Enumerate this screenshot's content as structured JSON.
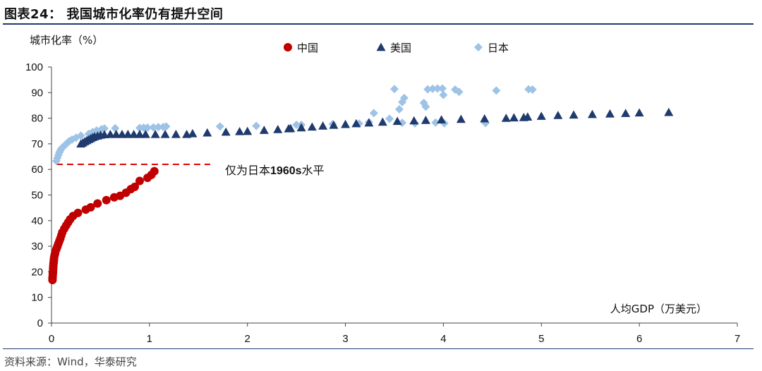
{
  "header": {
    "title": "图表24：  我国城市化率仍有提升空间"
  },
  "footer": {
    "source": "资料来源：Wind，华泰研究"
  },
  "chart_data": {
    "type": "scatter",
    "ylabel": "城市化率（%）",
    "xlabel": "人均GDP（万美元）",
    "xlim": [
      0,
      7
    ],
    "ylim": [
      0,
      100
    ],
    "xticks": [
      "0",
      "1",
      "2",
      "3",
      "4",
      "5",
      "6",
      "7"
    ],
    "yticks": [
      "0",
      "10",
      "20",
      "30",
      "40",
      "50",
      "60",
      "70",
      "80",
      "90",
      "100"
    ],
    "grid": false,
    "legend_position": "top",
    "annotation": {
      "text_prefix": "仅为日本",
      "text_bold": "1960s",
      "text_suffix": "水平",
      "ref_y": 62,
      "ref_x": [
        0.05,
        1.62
      ]
    },
    "series": [
      {
        "name": "中国",
        "marker": "circle",
        "color": "#c00000",
        "points": [
          [
            0.01,
            16.8
          ],
          [
            0.01,
            17.5
          ],
          [
            0.012,
            18.2
          ],
          [
            0.013,
            19.0
          ],
          [
            0.015,
            19.8
          ],
          [
            0.016,
            20.6
          ],
          [
            0.017,
            21.4
          ],
          [
            0.018,
            22.1
          ],
          [
            0.02,
            23.0
          ],
          [
            0.022,
            23.7
          ],
          [
            0.024,
            24.5
          ],
          [
            0.026,
            25.3
          ],
          [
            0.03,
            26.2
          ],
          [
            0.035,
            27.0
          ],
          [
            0.04,
            27.9
          ],
          [
            0.05,
            28.9
          ],
          [
            0.06,
            29.9
          ],
          [
            0.07,
            31.0
          ],
          [
            0.08,
            32.0
          ],
          [
            0.09,
            33.0
          ],
          [
            0.1,
            34.2
          ],
          [
            0.11,
            35.4
          ],
          [
            0.13,
            36.8
          ],
          [
            0.15,
            38.1
          ],
          [
            0.17,
            39.3
          ],
          [
            0.19,
            40.5
          ],
          [
            0.22,
            41.8
          ],
          [
            0.27,
            43.0
          ],
          [
            0.35,
            44.3
          ],
          [
            0.4,
            45.2
          ],
          [
            0.47,
            46.7
          ],
          [
            0.56,
            48.0
          ],
          [
            0.64,
            49.1
          ],
          [
            0.7,
            49.7
          ],
          [
            0.76,
            50.9
          ],
          [
            0.81,
            52.3
          ],
          [
            0.85,
            53.2
          ],
          [
            0.9,
            55.5
          ],
          [
            0.98,
            56.7
          ],
          [
            1.02,
            57.9
          ],
          [
            1.05,
            59.3
          ]
        ]
      },
      {
        "name": "美国",
        "marker": "triangle",
        "color": "#1f3b6e",
        "points": [
          [
            0.3,
            70.0
          ],
          [
            0.32,
            70.4
          ],
          [
            0.34,
            70.9
          ],
          [
            0.36,
            71.3
          ],
          [
            0.38,
            71.7
          ],
          [
            0.4,
            72.1
          ],
          [
            0.42,
            72.5
          ],
          [
            0.44,
            72.8
          ],
          [
            0.47,
            73.1
          ],
          [
            0.5,
            73.4
          ],
          [
            0.54,
            73.6
          ],
          [
            0.6,
            73.7
          ],
          [
            0.66,
            73.7
          ],
          [
            0.72,
            73.7
          ],
          [
            0.78,
            73.7
          ],
          [
            0.84,
            73.7
          ],
          [
            0.9,
            73.7
          ],
          [
            0.96,
            73.7
          ],
          [
            1.06,
            73.7
          ],
          [
            1.16,
            73.7
          ],
          [
            1.27,
            73.7
          ],
          [
            1.38,
            73.7
          ],
          [
            1.44,
            74.0
          ],
          [
            1.59,
            74.3
          ],
          [
            1.78,
            74.6
          ],
          [
            1.92,
            74.8
          ],
          [
            2.0,
            74.9
          ],
          [
            2.17,
            75.3
          ],
          [
            2.31,
            75.6
          ],
          [
            2.42,
            75.9
          ],
          [
            2.44,
            76.0
          ],
          [
            2.55,
            76.3
          ],
          [
            2.66,
            76.6
          ],
          [
            2.77,
            77.0
          ],
          [
            2.88,
            77.3
          ],
          [
            3.0,
            77.6
          ],
          [
            3.11,
            77.9
          ],
          [
            3.24,
            78.2
          ],
          [
            3.38,
            78.5
          ],
          [
            3.53,
            78.8
          ],
          [
            3.7,
            79.0
          ],
          [
            3.82,
            79.2
          ],
          [
            3.98,
            79.4
          ],
          [
            4.18,
            79.6
          ],
          [
            4.42,
            79.8
          ],
          [
            4.64,
            80.0
          ],
          [
            4.72,
            80.2
          ],
          [
            4.82,
            80.3
          ],
          [
            4.86,
            80.5
          ],
          [
            5.0,
            80.8
          ],
          [
            5.17,
            81.1
          ],
          [
            5.33,
            81.3
          ],
          [
            5.52,
            81.5
          ],
          [
            5.7,
            81.7
          ],
          [
            5.86,
            81.9
          ],
          [
            6.0,
            82.1
          ],
          [
            6.3,
            82.3
          ]
        ]
      },
      {
        "name": "日本",
        "marker": "diamond",
        "color": "#9dc3e6",
        "points": [
          [
            0.05,
            63.3
          ],
          [
            0.06,
            64.5
          ],
          [
            0.07,
            65.6
          ],
          [
            0.08,
            66.6
          ],
          [
            0.09,
            67.4
          ],
          [
            0.1,
            68.1
          ],
          [
            0.12,
            68.8
          ],
          [
            0.14,
            69.6
          ],
          [
            0.16,
            70.3
          ],
          [
            0.18,
            71.0
          ],
          [
            0.21,
            71.7
          ],
          [
            0.25,
            72.4
          ],
          [
            0.3,
            73.2
          ],
          [
            0.38,
            73.9
          ],
          [
            0.42,
            74.6
          ],
          [
            0.46,
            75.2
          ],
          [
            0.51,
            75.7
          ],
          [
            0.54,
            76.0
          ],
          [
            0.65,
            76.1
          ],
          [
            0.9,
            76.2
          ],
          [
            0.94,
            76.3
          ],
          [
            0.98,
            76.3
          ],
          [
            1.04,
            76.4
          ],
          [
            1.09,
            76.5
          ],
          [
            1.14,
            76.6
          ],
          [
            1.17,
            76.8
          ],
          [
            1.72,
            76.8
          ],
          [
            2.09,
            77.0
          ],
          [
            2.5,
            77.4
          ],
          [
            2.55,
            77.4
          ],
          [
            2.87,
            77.7
          ],
          [
            3.14,
            77.9
          ],
          [
            3.24,
            78.4
          ],
          [
            3.29,
            82.0
          ],
          [
            3.45,
            79.8
          ],
          [
            3.5,
            91.4
          ],
          [
            3.55,
            83.5
          ],
          [
            3.58,
            86.3
          ],
          [
            3.6,
            87.9
          ],
          [
            3.58,
            78.2
          ],
          [
            3.71,
            78.0
          ],
          [
            3.8,
            86.0
          ],
          [
            3.82,
            84.5
          ],
          [
            3.84,
            91.3
          ],
          [
            3.89,
            91.5
          ],
          [
            3.92,
            78.3
          ],
          [
            3.94,
            91.6
          ],
          [
            3.99,
            91.6
          ],
          [
            4.0,
            89.1
          ],
          [
            4.01,
            78.0
          ],
          [
            4.12,
            91.2
          ],
          [
            4.16,
            90.3
          ],
          [
            4.43,
            78.1
          ],
          [
            4.54,
            90.8
          ],
          [
            4.91,
            91.2
          ],
          [
            4.87,
            91.3
          ]
        ]
      }
    ]
  }
}
